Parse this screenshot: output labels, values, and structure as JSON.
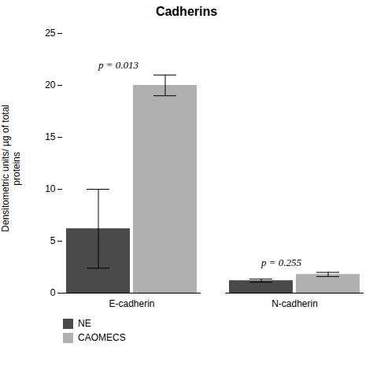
{
  "chart_data": {
    "type": "bar",
    "title": "Cadherins",
    "ylabel": "Densitometric units/ µg of total\nproteins",
    "categories": [
      "E-cadherin",
      "N-cadherin"
    ],
    "series": [
      {
        "name": "NE",
        "color": "#4a4a4a",
        "values": [
          6.2,
          1.2
        ],
        "errors": [
          3.8,
          0.15
        ]
      },
      {
        "name": "CAOMECS",
        "color": "#b0b0b0",
        "values": [
          20.0,
          1.8
        ],
        "errors": [
          1.0,
          0.2
        ]
      }
    ],
    "annotations": [
      {
        "text": "p = 0.013",
        "category": "E-cadherin",
        "y": 21.5
      },
      {
        "text": "p = 0.255",
        "category": "N-cadherin",
        "y": 2.5
      }
    ],
    "ylim": [
      0,
      25
    ],
    "yticks": [
      0,
      5,
      10,
      15,
      20,
      25
    ],
    "grid": false,
    "legend": "lower left"
  }
}
